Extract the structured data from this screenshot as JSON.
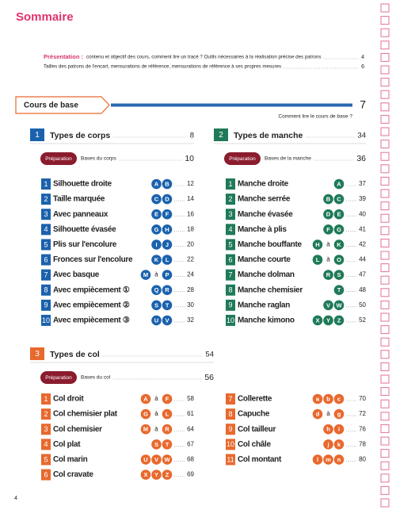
{
  "header": {
    "title": "Sommaire"
  },
  "intro": [
    {
      "label": "Présentation :",
      "text": "contenu et objectif des cours, comment lire un tracé ? Outils nécessaires à la réalisation précise des patrons",
      "page": 4
    },
    {
      "text": "Tailles des patrons de l'encart, mensurations de référence, mensurations de référence à ses propres mesures",
      "page": 6
    }
  ],
  "cours": {
    "title": "Cours de base",
    "page": 7,
    "subtitle": "Comment lire le cours de base ?"
  },
  "sections": [
    {
      "number": 1,
      "title": "Types de corps",
      "page": 8,
      "color": "#1b62ad",
      "prep": {
        "label": "Préparation",
        "text": "Bases du corps",
        "page": 10
      },
      "columns": [
        [
          {
            "n": 1,
            "title": "Silhouette droite",
            "letters": [
              "A",
              "B"
            ],
            "page": 12
          },
          {
            "n": 2,
            "title": "Taille marquée",
            "letters": [
              "C",
              "D"
            ],
            "page": 14
          },
          {
            "n": 3,
            "title": "Avec panneaux",
            "letters": [
              "E",
              "F"
            ],
            "page": 16
          },
          {
            "n": 4,
            "title": "Silhouette évasée",
            "letters": [
              "G",
              "H"
            ],
            "page": 18
          },
          {
            "n": 5,
            "title": "Plis sur l'encolure",
            "letters": [
              "I",
              "J"
            ],
            "page": 20
          },
          {
            "n": 6,
            "title": "Fronces sur l'encolure",
            "letters": [
              "K",
              "L"
            ],
            "page": 22
          },
          {
            "n": 7,
            "title": "Avec basque",
            "range": [
              "M",
              "à",
              "P"
            ],
            "page": 24
          },
          {
            "n": 8,
            "title": "Avec empiècement ①",
            "letters": [
              "Q",
              "R"
            ],
            "page": 28
          },
          {
            "n": 9,
            "title": "Avec empiècement ②",
            "letters": [
              "S",
              "T"
            ],
            "page": 30
          },
          {
            "n": 10,
            "title": "Avec empiècement ③",
            "letters": [
              "U",
              "V"
            ],
            "page": 32
          }
        ]
      ]
    },
    {
      "number": 2,
      "title": "Types de manche",
      "page": 34,
      "color": "#1f7a58",
      "prep": {
        "label": "Préparation",
        "text": "Bases de la manche",
        "page": 36
      },
      "columns": [
        [
          {
            "n": 1,
            "title": "Manche droite",
            "letters": [
              "A"
            ],
            "page": 37
          },
          {
            "n": 2,
            "title": "Manche serrée",
            "letters": [
              "B",
              "C"
            ],
            "page": 39
          },
          {
            "n": 3,
            "title": "Manche évasée",
            "letters": [
              "D",
              "E"
            ],
            "page": 40
          },
          {
            "n": 4,
            "title": "Manche à plis",
            "letters": [
              "F",
              "G"
            ],
            "page": 41
          },
          {
            "n": 5,
            "title": "Manche bouffante",
            "range": [
              "H",
              "à",
              "K"
            ],
            "page": 42
          },
          {
            "n": 6,
            "title": "Manche courte",
            "range": [
              "L",
              "à",
              "O"
            ],
            "page": 44
          },
          {
            "n": 7,
            "title": "Manche dolman",
            "letters": [
              "R",
              "S"
            ],
            "page": 47
          },
          {
            "n": 8,
            "title": "Manche chemisier",
            "letters": [
              "T"
            ],
            "page": 48
          },
          {
            "n": 9,
            "title": "Manche raglan",
            "letters": [
              "V",
              "W"
            ],
            "page": 50
          },
          {
            "n": 10,
            "title": "Manche kimono",
            "letters": [
              "X",
              "Y",
              "Z"
            ],
            "page": 52
          }
        ]
      ]
    },
    {
      "number": 3,
      "title": "Types de col",
      "page": 54,
      "color": "#e8692e",
      "prep": {
        "label": "Préparation",
        "text": "Bases du col",
        "page": 56
      },
      "columns": [
        [
          {
            "n": 1,
            "title": "Col droit",
            "range": [
              "A",
              "à",
              "F"
            ],
            "page": 58
          },
          {
            "n": 2,
            "title": "Col chemisier plat",
            "range": [
              "G",
              "à",
              "L"
            ],
            "page": 61
          },
          {
            "n": 3,
            "title": "Col chemisier",
            "range": [
              "M",
              "à",
              "R"
            ],
            "page": 64
          },
          {
            "n": 4,
            "title": "Col plat",
            "letters": [
              "S",
              "T"
            ],
            "page": 67
          },
          {
            "n": 5,
            "title": "Col marin",
            "letters": [
              "U",
              "V",
              "W"
            ],
            "page": 68
          },
          {
            "n": 6,
            "title": "Col cravate",
            "letters": [
              "X",
              "Y",
              "Z"
            ],
            "page": 69
          }
        ],
        [
          {
            "n": 7,
            "title": "Collerette",
            "letters": [
              "a",
              "b",
              "c"
            ],
            "page": 70
          },
          {
            "n": 8,
            "title": "Capuche",
            "range": [
              "d",
              "à",
              "g"
            ],
            "page": 72
          },
          {
            "n": 9,
            "title": "Col tailleur",
            "letters": [
              "h",
              "i"
            ],
            "page": 76
          },
          {
            "n": 10,
            "title": "Col châle",
            "letters": [
              "j",
              "k"
            ],
            "page": 78
          },
          {
            "n": 11,
            "title": "Col montant",
            "letters": [
              "l",
              "m",
              "n"
            ],
            "page": 80
          }
        ]
      ]
    }
  ],
  "footer": {
    "page": 4
  }
}
